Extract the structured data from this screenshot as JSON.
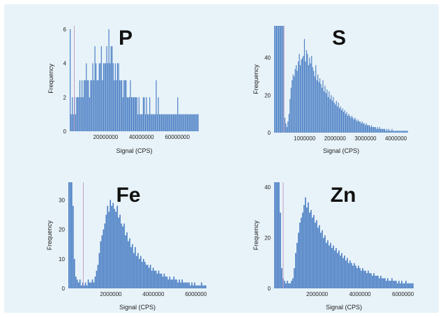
{
  "colors": {
    "background": "#e8f3f9",
    "bars": "#4a7ec4",
    "threshold": "#b98ab6"
  },
  "chart_data": [
    {
      "type": "bar",
      "title": "P",
      "xlabel": "Signal (CPS)",
      "ylabel": "Frequency",
      "xlim": [
        0,
        72000000
      ],
      "ylim": [
        0,
        6.2
      ],
      "xticks": [
        20000000,
        40000000,
        60000000
      ],
      "xtick_labels": [
        "20000000",
        "40000000",
        "60000000"
      ],
      "yticks": [
        0,
        2,
        4,
        6
      ],
      "ytick_labels": [
        "0",
        "2",
        "4",
        "6"
      ],
      "threshold": 2500000,
      "values": [
        6,
        1,
        2,
        1,
        2,
        1,
        2,
        2,
        2,
        3,
        2,
        3,
        2,
        3,
        3,
        4,
        3,
        3,
        2,
        3,
        3,
        4,
        3,
        5,
        4,
        3,
        3,
        4,
        4,
        5,
        3,
        4,
        4,
        4,
        5,
        4,
        6,
        4,
        5,
        5,
        4,
        3,
        4,
        3,
        4,
        4,
        3,
        3,
        3,
        2,
        3,
        3,
        3,
        2,
        2,
        2,
        3,
        2,
        2,
        2,
        2,
        2,
        2,
        1,
        2,
        1,
        1,
        1,
        2,
        2,
        1,
        2,
        1,
        1,
        2,
        1,
        1,
        1,
        1,
        1,
        3,
        1,
        2,
        1,
        1,
        1,
        1,
        1,
        1,
        1,
        1,
        1,
        1,
        1,
        1,
        1,
        1,
        1,
        1,
        1,
        2,
        1,
        1,
        1,
        1,
        1,
        1,
        1,
        1,
        1,
        1,
        1,
        1,
        1,
        1,
        1,
        1,
        1,
        1,
        1
      ]
    },
    {
      "type": "bar",
      "title": "S",
      "xlabel": "Signal (CPS)",
      "ylabel": "Frequency",
      "xlim": [
        0,
        4400000
      ],
      "ylim": [
        0,
        57
      ],
      "xticks": [
        1000000,
        2000000,
        3000000,
        4000000
      ],
      "xtick_labels": [
        "1000000",
        "2000000",
        "3000000",
        "4000000"
      ],
      "yticks": [
        0,
        20,
        40
      ],
      "ytick_labels": [
        "0",
        "20",
        "40"
      ],
      "threshold": 320000,
      "values": [
        57,
        57,
        57,
        57,
        57,
        57,
        57,
        57,
        57,
        57,
        8,
        5,
        3,
        6,
        10,
        18,
        24,
        28,
        31,
        30,
        34,
        36,
        33,
        38,
        42,
        36,
        39,
        40,
        41,
        50,
        38,
        44,
        42,
        36,
        40,
        37,
        41,
        35,
        33,
        30,
        36,
        28,
        31,
        27,
        29,
        26,
        24,
        28,
        22,
        25,
        21,
        23,
        19,
        22,
        18,
        20,
        17,
        19,
        16,
        15,
        17,
        14,
        16,
        13,
        14,
        12,
        13,
        11,
        12,
        10,
        11,
        9,
        10,
        9,
        8,
        9,
        8,
        7,
        8,
        7,
        6,
        7,
        6,
        6,
        5,
        6,
        5,
        5,
        4,
        5,
        4,
        4,
        4,
        3,
        4,
        3,
        3,
        3,
        3,
        2,
        3,
        2,
        3,
        2,
        2,
        2,
        2,
        2,
        1,
        2,
        1,
        2,
        1,
        1,
        2,
        1,
        1,
        1,
        1,
        1,
        1,
        1,
        1,
        1,
        1,
        1,
        1,
        1,
        1,
        1
      ]
    },
    {
      "type": "bar",
      "title": "Fe",
      "xlabel": "Signal (CPS)",
      "ylabel": "Frequency",
      "xlim": [
        0,
        6500000
      ],
      "ylim": [
        0,
        36
      ],
      "xticks": [
        2000000,
        4000000,
        6000000
      ],
      "xtick_labels": [
        "2000000",
        "4000000",
        "6000000"
      ],
      "yticks": [
        0,
        10,
        20,
        30
      ],
      "ytick_labels": [
        "0",
        "10",
        "20",
        "30"
      ],
      "threshold": 700000,
      "values": [
        36,
        36,
        36,
        28,
        10,
        4,
        3,
        2,
        3,
        1,
        2,
        1,
        2,
        1,
        3,
        2,
        2,
        3,
        2,
        4,
        6,
        8,
        12,
        16,
        18,
        20,
        22,
        25,
        28,
        26,
        30,
        28,
        29,
        27,
        26,
        28,
        24,
        25,
        22,
        21,
        22,
        18,
        19,
        16,
        17,
        14,
        15,
        12,
        14,
        11,
        12,
        10,
        11,
        9,
        10,
        9,
        8,
        8,
        7,
        8,
        6,
        7,
        6,
        6,
        5,
        6,
        5,
        5,
        4,
        5,
        4,
        4,
        3,
        4,
        3,
        3,
        4,
        3,
        3,
        2,
        3,
        2,
        3,
        2,
        2,
        2,
        2,
        2,
        1,
        2,
        1,
        2,
        1,
        1,
        1,
        1,
        2,
        1,
        1,
        1
      ]
    },
    {
      "type": "bar",
      "title": "Zn",
      "xlabel": "Signal (CPS)",
      "ylabel": "Frequency",
      "xlim": [
        0,
        6500000
      ],
      "ylim": [
        0,
        42
      ],
      "xticks": [
        2000000,
        4000000,
        6000000
      ],
      "xtick_labels": [
        "2000000",
        "4000000",
        "6000000"
      ],
      "yticks": [
        0,
        20,
        40
      ],
      "ytick_labels": [
        "0",
        "20",
        "40"
      ],
      "threshold": 420000,
      "values": [
        42,
        42,
        42,
        42,
        30,
        8,
        4,
        3,
        2,
        3,
        2,
        2,
        3,
        4,
        8,
        14,
        18,
        22,
        26,
        28,
        30,
        33,
        36,
        32,
        34,
        30,
        31,
        28,
        29,
        26,
        27,
        24,
        25,
        22,
        23,
        20,
        21,
        18,
        19,
        17,
        18,
        16,
        17,
        15,
        16,
        14,
        15,
        13,
        14,
        12,
        13,
        11,
        12,
        10,
        11,
        10,
        9,
        10,
        9,
        8,
        9,
        8,
        7,
        8,
        7,
        7,
        6,
        7,
        6,
        6,
        5,
        6,
        5,
        5,
        5,
        4,
        5,
        4,
        4,
        4,
        3,
        4,
        3,
        3,
        4,
        3,
        3,
        3,
        2,
        3,
        2,
        3,
        2,
        2,
        3,
        2,
        2,
        2,
        2,
        2
      ]
    }
  ]
}
